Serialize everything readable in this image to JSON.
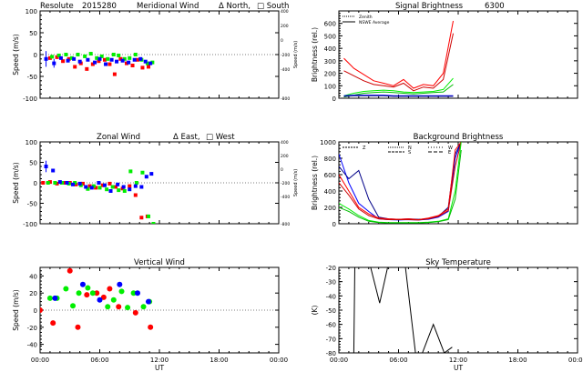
{
  "chart_data": [
    {
      "id": "meridional",
      "type": "scatter",
      "title_parts": [
        "Resolute",
        "2015280",
        "Meridional Wind",
        "Δ North,",
        "□ South"
      ],
      "ylabel": "Speed (m/s)",
      "y2label": "Speed (m/s)",
      "ylim": [
        -100,
        100
      ],
      "yticks": [
        -100,
        -50,
        0,
        50,
        100
      ],
      "y2ticks": [
        -800,
        -400,
        -200,
        0,
        200,
        400
      ],
      "y2lim": [
        -800,
        400
      ],
      "xlim": [
        0,
        24
      ],
      "xtick_labels": [],
      "series": [
        {
          "color": "#ff0000",
          "x": [
            1.0,
            1.7,
            2.3,
            2.9,
            3.5,
            4.1,
            4.7,
            5.3,
            5.9,
            6.5,
            7.0,
            7.5,
            8.1,
            8.7,
            9.3,
            9.8,
            10.3,
            10.9
          ],
          "y": [
            -8,
            -6,
            -15,
            -10,
            -28,
            -20,
            -33,
            -22,
            -15,
            -12,
            -22,
            -45,
            -10,
            -20,
            -25,
            -12,
            -30,
            -28
          ]
        },
        {
          "color": "#00ee00",
          "x": [
            1.2,
            1.9,
            2.6,
            3.2,
            3.8,
            4.5,
            5.1,
            5.7,
            6.2,
            6.8,
            7.4,
            7.9,
            8.5,
            9.0,
            9.6,
            10.2,
            10.8,
            11.3
          ],
          "y": [
            -5,
            -2,
            0,
            -8,
            0,
            -4,
            2,
            -8,
            -4,
            -10,
            0,
            -2,
            -10,
            -8,
            0,
            -12,
            -20,
            -18
          ]
        },
        {
          "color": "#0000ff",
          "x": [
            0.6,
            1.4,
            2.1,
            2.8,
            3.4,
            4.0,
            4.8,
            5.5,
            6.0,
            6.6,
            7.2,
            7.7,
            8.3,
            8.9,
            9.5,
            10.1,
            10.6,
            11.1
          ],
          "y": [
            -10,
            -20,
            -8,
            -14,
            -10,
            -16,
            -12,
            -18,
            -10,
            -22,
            -12,
            -16,
            -14,
            -18,
            -12,
            -10,
            -16,
            -20
          ]
        }
      ],
      "error_bars": [
        {
          "color": "#0000ff",
          "x": 0.6,
          "y": -10,
          "err": 18
        },
        {
          "color": "#0000ff",
          "x": 1.4,
          "y": -20,
          "err": 10
        }
      ]
    },
    {
      "id": "zonal",
      "type": "scatter",
      "title_parts": [
        "Zonal Wind",
        "Δ East,",
        "□ West"
      ],
      "ylabel": "Speed (m/s)",
      "y2label": "Speed (m/s)",
      "ylim": [
        -100,
        100
      ],
      "yticks": [
        -100,
        -50,
        0,
        50,
        100
      ],
      "y2ticks": [
        -800,
        -400,
        -200,
        0,
        200,
        400
      ],
      "y2lim": [
        -800,
        400
      ],
      "xlim": [
        0,
        24
      ],
      "xtick_labels": [],
      "series": [
        {
          "color": "#ff0000",
          "x": [
            0.3,
            1.0,
            1.7,
            2.4,
            3.0,
            3.6,
            4.3,
            5.0,
            5.6,
            6.3,
            7.0,
            7.6,
            8.3,
            9.0,
            9.6,
            10.2,
            10.8
          ],
          "y": [
            0,
            2,
            -2,
            0,
            0,
            -4,
            -2,
            -8,
            -12,
            -6,
            -2,
            -10,
            -14,
            -8,
            -30,
            -85,
            -82
          ]
        },
        {
          "color": "#00ee00",
          "x": [
            0.8,
            1.5,
            2.2,
            2.9,
            3.5,
            4.1,
            4.8,
            5.4,
            6.0,
            6.7,
            7.3,
            7.9,
            8.5,
            9.1,
            9.7,
            10.3,
            10.9,
            11.4
          ],
          "y": [
            0,
            0,
            0,
            -2,
            0,
            -6,
            -15,
            -8,
            -12,
            -16,
            -10,
            -18,
            -20,
            28,
            0,
            25,
            -82,
            -100
          ]
        },
        {
          "color": "#0000ff",
          "x": [
            0.6,
            1.3,
            2.0,
            2.7,
            3.3,
            4.0,
            4.6,
            5.2,
            5.9,
            6.5,
            7.1,
            7.8,
            8.4,
            9.0,
            9.6,
            10.2,
            10.7,
            11.2
          ],
          "y": [
            40,
            30,
            2,
            0,
            -4,
            -2,
            -10,
            -12,
            0,
            -6,
            -20,
            -4,
            -10,
            -16,
            -8,
            -10,
            15,
            22
          ]
        }
      ],
      "error_bars": [
        {
          "color": "#0000ff",
          "x": 0.6,
          "y": 40,
          "err": 14
        }
      ]
    },
    {
      "id": "vertical",
      "type": "scatter",
      "title": "Vertical Wind",
      "ylabel": "Speed (m/s)",
      "xlabel": "UT",
      "ylim": [
        -50,
        50
      ],
      "yticks": [
        -40,
        -20,
        0,
        20,
        40
      ],
      "xlim": [
        0,
        24
      ],
      "xtick_labels": [
        "00:00",
        "06:00",
        "12:00",
        "18:00",
        "00:00"
      ],
      "series": [
        {
          "color": "#ff0000",
          "x": [
            0.0,
            1.3,
            3.0,
            3.8,
            4.7,
            5.7,
            6.4,
            7.0,
            7.9,
            9.6,
            11.1
          ],
          "y": [
            0,
            -15,
            46,
            -20,
            18,
            20,
            15,
            25,
            4,
            -3,
            -20
          ]
        },
        {
          "color": "#00ee00",
          "x": [
            1.0,
            1.7,
            2.6,
            3.3,
            3.9,
            4.8,
            5.3,
            6.8,
            7.4,
            8.2,
            8.8,
            9.4,
            10.4,
            11.0
          ],
          "y": [
            14,
            14,
            25,
            5,
            20,
            26,
            20,
            4,
            12,
            22,
            3,
            20,
            4,
            10
          ]
        },
        {
          "color": "#0000ff",
          "x": [
            1.5,
            4.3,
            6.0,
            8.0,
            9.8,
            10.9
          ],
          "y": [
            14,
            30,
            12,
            30,
            20,
            10
          ]
        }
      ]
    },
    {
      "id": "signal",
      "type": "line",
      "title_parts": [
        "Signal Brightness",
        "6300"
      ],
      "ylabel": "Brightness (rel.)",
      "ylim": [
        0,
        700
      ],
      "yticks": [
        0,
        100,
        200,
        300,
        400,
        500,
        600
      ],
      "xlim": [
        0,
        24
      ],
      "xtick_labels": [],
      "legend": [
        "Zenith",
        "NSWE Average"
      ],
      "legend_position": "top-left",
      "x": [
        0.5,
        1.5,
        2.5,
        3.5,
        4.5,
        5.5,
        6.5,
        7.5,
        8.5,
        9.5,
        10.5,
        11.5
      ],
      "series": [
        {
          "color": "#ff0000",
          "values": [
            320,
            240,
            190,
            140,
            120,
            100,
            150,
            80,
            110,
            100,
            200,
            620
          ]
        },
        {
          "color": "#cc0000",
          "values": [
            220,
            180,
            140,
            110,
            100,
            90,
            120,
            60,
            90,
            80,
            150,
            520
          ]
        },
        {
          "color": "#00ee00",
          "values": [
            20,
            40,
            55,
            60,
            65,
            60,
            50,
            45,
            50,
            55,
            70,
            160
          ]
        },
        {
          "color": "#00bb00",
          "values": [
            10,
            25,
            40,
            45,
            50,
            45,
            40,
            35,
            40,
            45,
            50,
            110
          ]
        },
        {
          "color": "#0000ff",
          "values": [
            20,
            25,
            25,
            25,
            25,
            20,
            20,
            20,
            20,
            20,
            20,
            20
          ]
        },
        {
          "color": "#000088",
          "values": [
            15,
            20,
            20,
            20,
            20,
            15,
            15,
            15,
            15,
            15,
            15,
            15
          ]
        }
      ]
    },
    {
      "id": "background",
      "type": "line",
      "title": "Background Brightness",
      "ylabel": "Brightness (rel.)",
      "ylim": [
        0,
        1000
      ],
      "yticks": [
        0,
        200,
        400,
        600,
        800,
        1000
      ],
      "xlim": [
        0,
        24
      ],
      "xtick_labels": [],
      "legend": [
        "Z",
        "N",
        "S",
        "W",
        "E"
      ],
      "legend_position": "top",
      "x": [
        0.0,
        1.0,
        2.0,
        3.0,
        4.0,
        5.0,
        6.0,
        7.0,
        8.0,
        9.0,
        10.0,
        11.0,
        11.7,
        12.3
      ],
      "series": [
        {
          "color": "#0000ff",
          "values": [
            850,
            500,
            250,
            150,
            60,
            50,
            45,
            50,
            45,
            55,
            80,
            150,
            800,
            1000
          ]
        },
        {
          "color": "#000088",
          "values": [
            700,
            550,
            650,
            300,
            80,
            60,
            55,
            60,
            55,
            60,
            90,
            200,
            850,
            1000
          ]
        },
        {
          "color": "#ff0000",
          "values": [
            600,
            400,
            200,
            120,
            70,
            60,
            55,
            60,
            50,
            70,
            100,
            180,
            900,
            1000
          ]
        },
        {
          "color": "#cc0000",
          "values": [
            500,
            350,
            180,
            100,
            60,
            50,
            50,
            50,
            45,
            60,
            90,
            160,
            700,
            1000
          ]
        },
        {
          "color": "#00ee00",
          "values": [
            250,
            180,
            100,
            40,
            20,
            15,
            15,
            15,
            15,
            20,
            30,
            60,
            400,
            1000
          ]
        },
        {
          "color": "#00bb00",
          "values": [
            200,
            150,
            80,
            30,
            15,
            10,
            10,
            10,
            10,
            15,
            25,
            50,
            300,
            900
          ]
        }
      ]
    },
    {
      "id": "skytemp",
      "type": "line",
      "title": "Sky Temperature",
      "ylabel": "(K)",
      "xlabel": "UT",
      "ylim": [
        -80,
        -20
      ],
      "yticks": [
        -80,
        -70,
        -60,
        -50,
        -40,
        -30,
        -20
      ],
      "xlim": [
        0,
        24
      ],
      "xtick_labels": [
        "00:00",
        "06:00",
        "12:00",
        "18:00",
        "00:00"
      ],
      "x": [
        1.5,
        1.6,
        3.2,
        4.1,
        4.9,
        5.7,
        6.7,
        7.7,
        8.4,
        9.5,
        10.6,
        11.4
      ],
      "series": [
        {
          "color": "#000000",
          "values": [
            -80,
            -20,
            -20,
            -45,
            -20,
            -20,
            -20,
            -80,
            -80,
            -60,
            -80,
            -76
          ]
        }
      ]
    }
  ]
}
